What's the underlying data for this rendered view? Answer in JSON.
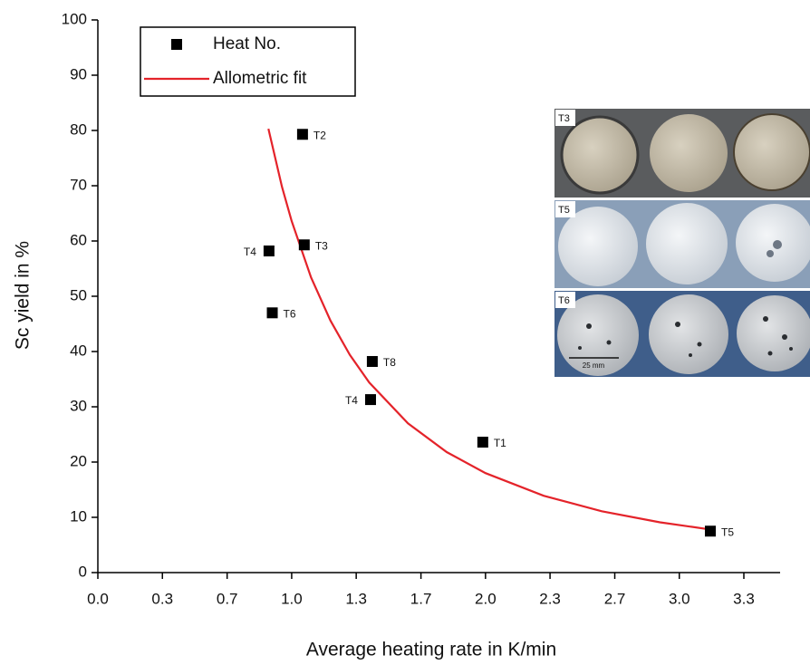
{
  "chart_data": {
    "type": "scatter",
    "xlabel": "Average heating rate in K/min",
    "ylabel": "Sc yield in %",
    "xlim": [
      0,
      3.52
    ],
    "ylim": [
      0,
      100
    ],
    "xticks": [
      {
        "value": 0,
        "label": "0.0"
      },
      {
        "value": 0.333,
        "label": "0.3"
      },
      {
        "value": 0.667,
        "label": "0.7"
      },
      {
        "value": 1,
        "label": "1.0"
      },
      {
        "value": 1.333,
        "label": "1.3"
      },
      {
        "value": 1.667,
        "label": "1.7"
      },
      {
        "value": 2,
        "label": "2.0"
      },
      {
        "value": 2.333,
        "label": "2.3"
      },
      {
        "value": 2.667,
        "label": "2.7"
      },
      {
        "value": 3,
        "label": "3.0"
      },
      {
        "value": 3.333,
        "label": "3.3"
      }
    ],
    "yticks": [
      0,
      10,
      20,
      30,
      40,
      50,
      60,
      70,
      80,
      90,
      100
    ],
    "grid": false,
    "legend": "upper left",
    "series": [
      {
        "name": "Heat No.",
        "mode": "markers",
        "color": "#000000",
        "x": [
          1.056,
          1.065,
          0.883,
          0.9,
          1.416,
          1.407,
          1.986,
          3.16
        ],
        "values": [
          79.3,
          59.3,
          58.2,
          47.0,
          38.2,
          31.3,
          23.6,
          7.5
        ],
        "labels": [
          "T2",
          "T3",
          "T4",
          "T6",
          "T8",
          "T4",
          "T1",
          "T5"
        ]
      },
      {
        "name": "Allometric fit",
        "mode": "line",
        "color": "#e4232a",
        "x": [
          0.88,
          0.95,
          1.0,
          1.1,
          1.2,
          1.3,
          1.4,
          1.6,
          1.8,
          2.0,
          2.3,
          2.6,
          2.9,
          3.16
        ],
        "values": [
          80.3,
          69.8,
          63.6,
          53.4,
          45.6,
          39.4,
          34.4,
          27.0,
          21.8,
          18.0,
          13.9,
          11.1,
          9.1,
          7.8
        ]
      }
    ]
  },
  "inset": {
    "panels": [
      "T3",
      "T5",
      "T6"
    ],
    "scale_bar": "25 mm"
  }
}
